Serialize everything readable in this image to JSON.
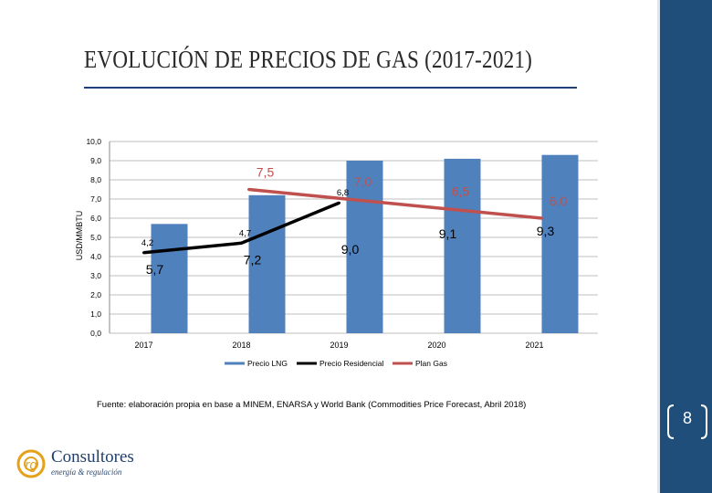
{
  "slide": {
    "title": "EVOLUCIÓN DE PRECIOS DE GAS (2017-2021)",
    "source": "Fuente: elaboración propia en base a MINEM, ENARSA y World Bank (Commodities Price Forecast, Abril 2018)",
    "page_number": "8"
  },
  "logo": {
    "mark": "rg",
    "name": "Consultores",
    "tagline": "energía & regulación"
  },
  "colors": {
    "bar": "#4f81bd",
    "residencial": "#000000",
    "plan_gas": "#c0504d",
    "sidebar": "#1e4e79"
  },
  "chart_data": {
    "type": "bar",
    "ylabel": "USD/MMBTU",
    "ylim": [
      0,
      10
    ],
    "yticks": [
      "0,0",
      "1,0",
      "2,0",
      "3,0",
      "4,0",
      "5,0",
      "6,0",
      "7,0",
      "8,0",
      "9,0",
      "10,0"
    ],
    "categories": [
      "2017",
      "2018",
      "2019",
      "2020",
      "2021"
    ],
    "grid": true,
    "legend_position": "bottom",
    "series": [
      {
        "name": "Precio LNG",
        "kind": "bar",
        "values": [
          5.7,
          7.2,
          9.0,
          9.1,
          9.3
        ],
        "labels": [
          "5,7",
          "7,2",
          "9,0",
          "9,1",
          "9,3"
        ]
      },
      {
        "name": "Precio Residencial",
        "kind": "line",
        "values": [
          4.2,
          4.7,
          6.8,
          null,
          null
        ],
        "labels": [
          "4,2",
          "4,7",
          "6,8",
          "",
          ""
        ]
      },
      {
        "name": "Plan Gas",
        "kind": "line",
        "values": [
          null,
          7.5,
          7.0,
          6.5,
          6.0
        ],
        "labels": [
          "",
          "7,5",
          "7,0",
          "6,5",
          "6,0"
        ]
      }
    ]
  }
}
